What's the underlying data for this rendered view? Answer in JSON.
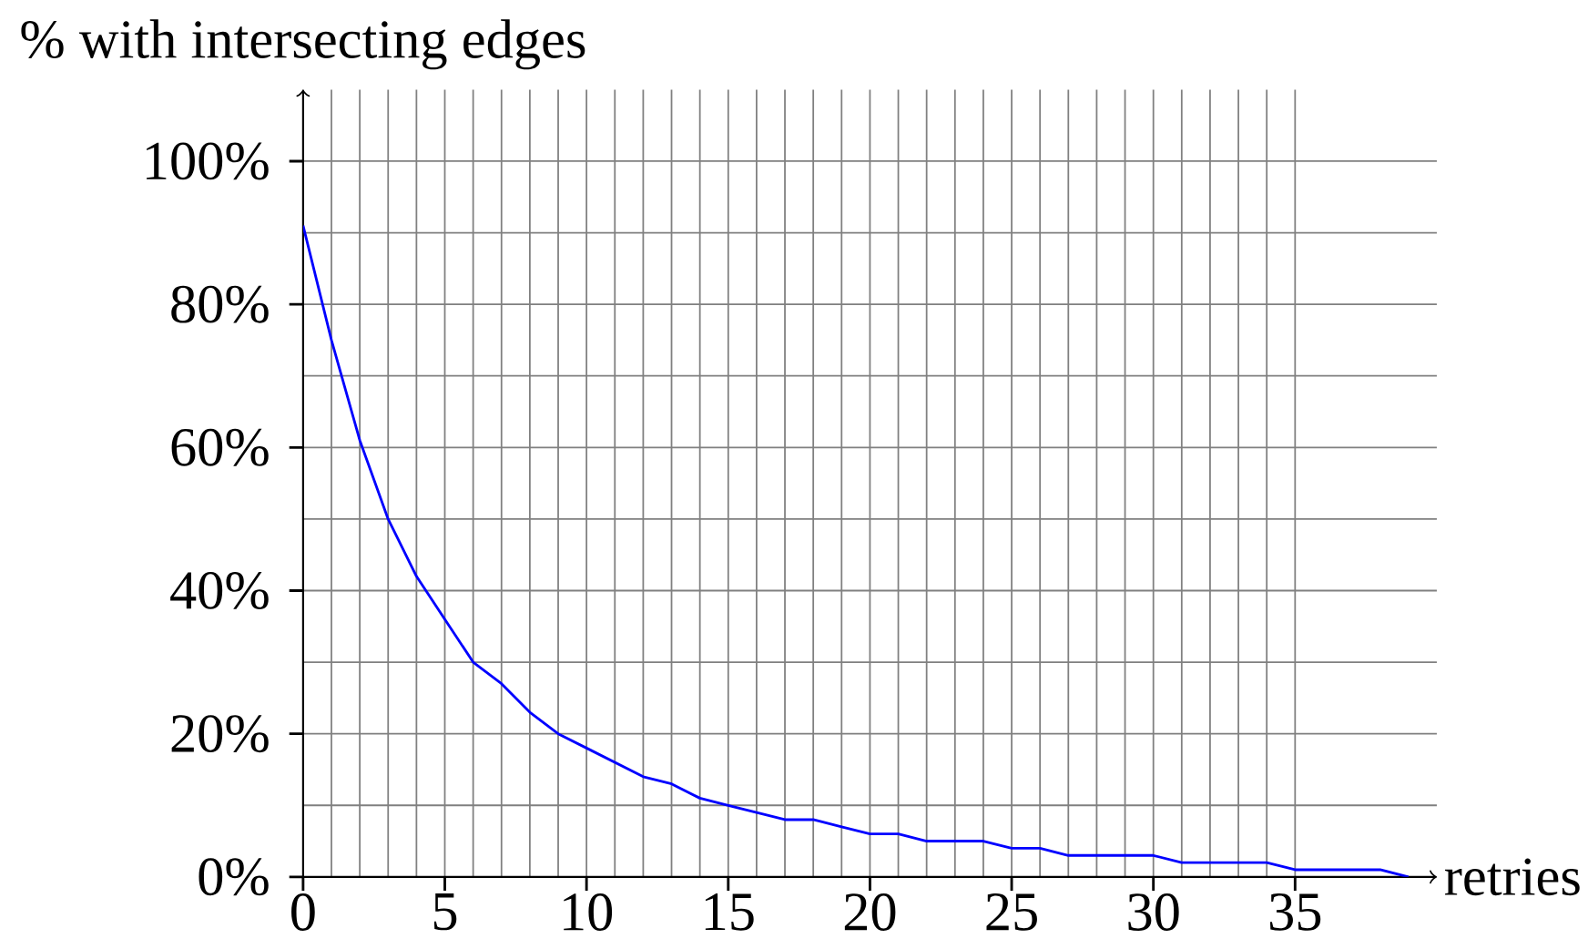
{
  "chart_data": {
    "type": "line",
    "xlabel": "retries",
    "ylabel": "% with intersecting edges",
    "x": [
      0,
      1,
      2,
      3,
      4,
      5,
      6,
      7,
      8,
      9,
      10,
      11,
      12,
      13,
      14,
      15,
      16,
      17,
      18,
      19,
      20,
      21,
      22,
      23,
      24,
      25,
      26,
      27,
      28,
      29,
      30,
      31,
      32,
      33,
      34,
      35,
      36,
      37,
      38,
      39
    ],
    "series": [
      {
        "color": "#0000ff",
        "values": [
          91,
          75,
          61,
          50,
          42,
          36,
          30,
          27,
          23,
          20,
          18,
          16,
          14,
          13,
          11,
          10,
          9,
          8,
          8,
          7,
          6,
          6,
          5,
          5,
          5,
          4,
          4,
          3,
          3,
          3,
          3,
          2,
          2,
          2,
          2,
          1,
          1,
          1,
          1,
          0
        ]
      }
    ],
    "xlim": [
      0,
      40
    ],
    "ylim": [
      0,
      110
    ],
    "xticks": [
      0,
      5,
      10,
      15,
      20,
      25,
      30,
      35
    ],
    "yticks": [
      {
        "value": 0,
        "label": "0%"
      },
      {
        "value": 20,
        "label": "20%"
      },
      {
        "value": 40,
        "label": "40%"
      },
      {
        "value": 60,
        "label": "60%"
      },
      {
        "value": 80,
        "label": "80%"
      },
      {
        "value": 100,
        "label": "100%"
      }
    ],
    "grid": true,
    "marker": "none",
    "line_style": "solid"
  }
}
